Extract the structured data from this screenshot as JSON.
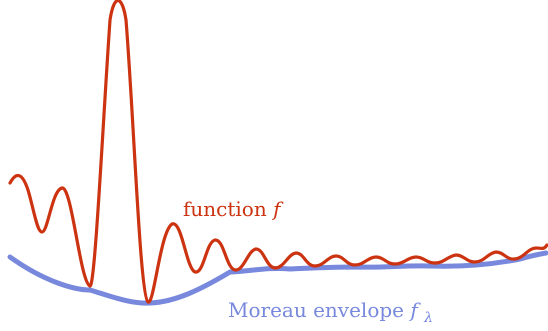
{
  "colors": {
    "function": "#cc3311",
    "envelope": "#7788dd",
    "background": "#ffffff"
  },
  "labels": {
    "function_text": "function ",
    "function_symbol": "f",
    "envelope_text": "Moreau envelope ",
    "envelope_symbol": "f",
    "envelope_subscript": "λ"
  }
}
